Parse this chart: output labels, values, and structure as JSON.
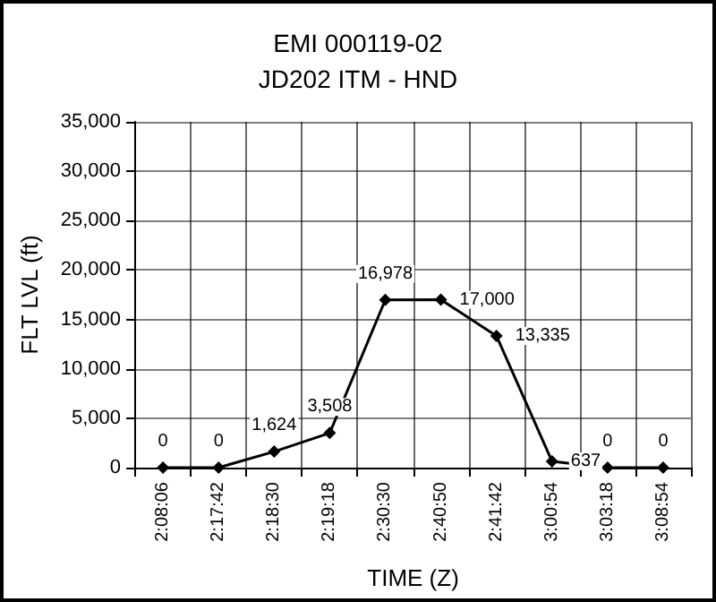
{
  "chart_data": {
    "type": "line",
    "title": "EMI 000119-02",
    "subtitle": "JD202 ITM - HND",
    "xlabel": "TIME (Z)",
    "ylabel": "FLT LVL (ft)",
    "categories": [
      "2:08:06",
      "2:17:42",
      "2:18:30",
      "2:19:18",
      "2:30:30",
      "2:40:50",
      "2:41:42",
      "3:00:54",
      "3:03:18",
      "3:08:54"
    ],
    "series": [
      {
        "color": "#000000",
        "values": [
          0,
          0,
          1624,
          3508,
          16978,
          17000,
          13335,
          637,
          0,
          0
        ],
        "value_labels": [
          "0",
          "0",
          "1,624",
          "3,508",
          "16,978",
          "17,000",
          "13,335",
          "637",
          "0",
          "0"
        ]
      }
    ],
    "ylim": [
      0,
      35000
    ],
    "yticks": [
      0,
      {
        "value": 5000,
        "label": "5,000"
      },
      {
        "value": 10000,
        "label": "10,000"
      },
      {
        "value": 15000,
        "label": "15,000"
      },
      {
        "value": 20000,
        "label": "20,000"
      },
      {
        "value": 25000,
        "label": "25,000"
      },
      {
        "value": 30000,
        "label": "30,000"
      },
      {
        "value": 35000,
        "label": "35,000"
      }
    ],
    "grid": true,
    "marker": "diamond",
    "line_style": "solid"
  }
}
